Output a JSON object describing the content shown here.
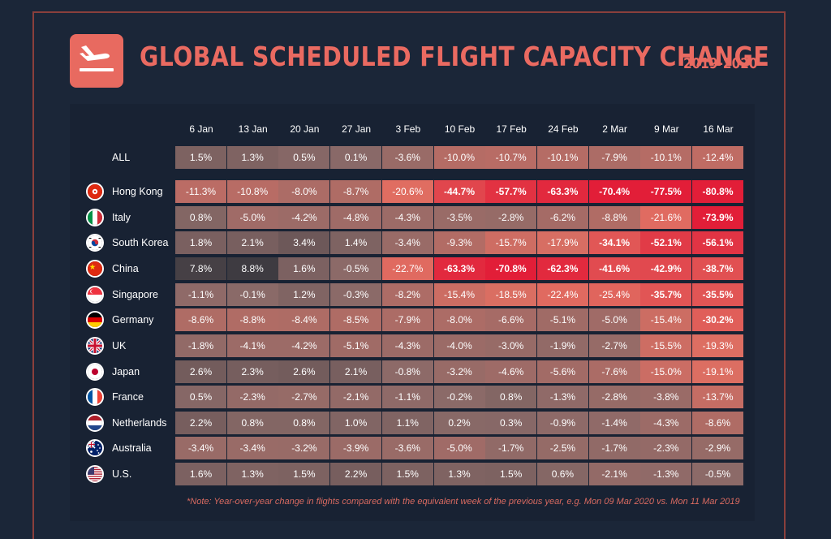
{
  "header": {
    "title": "GLOBAL SCHEDULED FLIGHT CAPACITY CHANGE",
    "subtitle": "2019-2020"
  },
  "footer": {
    "note": "*Note: Year-over-year change in flights compared with the equivalent week of the previous year, e.g. Mon 09 Mar 2020 vs. Mon 11 Mar 2019"
  },
  "chart_data": {
    "type": "heatmap",
    "title": "GLOBAL SCHEDULED FLIGHT CAPACITY CHANGE",
    "subtitle": "2019-2020",
    "columns": [
      "6 Jan",
      "13 Jan",
      "20 Jan",
      "27 Jan",
      "3 Feb",
      "10 Feb",
      "17 Feb",
      "24 Feb",
      "2 Mar",
      "9 Mar",
      "16 Mar"
    ],
    "rows": [
      {
        "name": "ALL",
        "flag": "",
        "values": [
          1.5,
          1.3,
          0.5,
          0.1,
          -3.6,
          -10.0,
          -10.7,
          -10.1,
          -7.9,
          -10.1,
          -12.4
        ],
        "labels": [
          "1.5%",
          "1.3%",
          "0.5%",
          "0.1%",
          "-3.6%",
          "-10.0%",
          "-10.7%",
          "-10.1%",
          "-7.9%",
          "-10.1%",
          "-12.4%"
        ]
      },
      {
        "name": "Hong Kong",
        "flag": "hong-kong",
        "values": [
          -11.3,
          -10.8,
          -8.0,
          -8.7,
          -20.6,
          -44.7,
          -57.7,
          -63.3,
          -70.4,
          -77.5,
          -80.8
        ],
        "labels": [
          "-11.3%",
          "-10.8%",
          "-8.0%",
          "-8.7%",
          "-20.6%",
          "-44.7%",
          "-57.7%",
          "-63.3%",
          "-70.4%",
          "-77.5%",
          "-80.8%"
        ]
      },
      {
        "name": "Italy",
        "flag": "italy",
        "values": [
          0.8,
          -5.0,
          -4.2,
          -4.8,
          -4.3,
          -3.5,
          -2.8,
          -6.2,
          -8.8,
          -21.6,
          -73.9
        ],
        "labels": [
          "0.8%",
          "-5.0%",
          "-4.2%",
          "-4.8%",
          "-4.3%",
          "-3.5%",
          "-2.8%",
          "-6.2%",
          "-8.8%",
          "-21.6%",
          "-73.9%"
        ]
      },
      {
        "name": "South Korea",
        "flag": "south-korea",
        "values": [
          1.8,
          2.1,
          3.4,
          1.4,
          -3.4,
          -9.3,
          -15.7,
          -17.9,
          -34.1,
          -52.1,
          -56.1
        ],
        "labels": [
          "1.8%",
          "2.1%",
          "3.4%",
          "1.4%",
          "-3.4%",
          "-9.3%",
          "-15.7%",
          "-17.9%",
          "-34.1%",
          "-52.1%",
          "-56.1%"
        ]
      },
      {
        "name": "China",
        "flag": "china",
        "values": [
          7.8,
          8.8,
          1.6,
          -0.5,
          -22.7,
          -63.3,
          -70.8,
          -62.3,
          -41.6,
          -42.9,
          -38.7
        ],
        "labels": [
          "7.8%",
          "8.8%",
          "1.6%",
          "-0.5%",
          "-22.7%",
          "-63.3%",
          "-70.8%",
          "-62.3%",
          "-41.6%",
          "-42.9%",
          "-38.7%"
        ]
      },
      {
        "name": "Singapore",
        "flag": "singapore",
        "values": [
          -1.1,
          -0.1,
          1.2,
          -0.3,
          -8.2,
          -15.4,
          -18.5,
          -22.4,
          -25.4,
          -35.7,
          -35.5
        ],
        "labels": [
          "-1.1%",
          "-0.1%",
          "1.2%",
          "-0.3%",
          "-8.2%",
          "-15.4%",
          "-18.5%",
          "-22.4%",
          "-25.4%",
          "-35.7%",
          "-35.5%"
        ]
      },
      {
        "name": "Germany",
        "flag": "germany",
        "values": [
          -8.6,
          -8.8,
          -8.4,
          -8.5,
          -7.9,
          -8.0,
          -6.6,
          -5.1,
          -5.0,
          -15.4,
          -30.2
        ],
        "labels": [
          "-8.6%",
          "-8.8%",
          "-8.4%",
          "-8.5%",
          "-7.9%",
          "-8.0%",
          "-6.6%",
          "-5.1%",
          "-5.0%",
          "-15.4%",
          "-30.2%"
        ]
      },
      {
        "name": "UK",
        "flag": "uk",
        "values": [
          -1.8,
          -4.1,
          -4.2,
          -5.1,
          -4.3,
          -4.0,
          -3.0,
          -1.9,
          -2.7,
          -15.5,
          -19.3
        ],
        "labels": [
          "-1.8%",
          "-4.1%",
          "-4.2%",
          "-5.1%",
          "-4.3%",
          "-4.0%",
          "-3.0%",
          "-1.9%",
          "-2.7%",
          "-15.5%",
          "-19.3%"
        ]
      },
      {
        "name": "Japan",
        "flag": "japan",
        "values": [
          2.6,
          2.3,
          2.6,
          2.1,
          -0.8,
          -3.2,
          -4.6,
          -5.6,
          -7.6,
          -15.0,
          -19.1
        ],
        "labels": [
          "2.6%",
          "2.3%",
          "2.6%",
          "2.1%",
          "-0.8%",
          "-3.2%",
          "-4.6%",
          "-5.6%",
          "-7.6%",
          "-15.0%",
          "-19.1%"
        ]
      },
      {
        "name": "France",
        "flag": "france",
        "values": [
          0.5,
          -2.3,
          -2.7,
          -2.1,
          -1.1,
          -0.2,
          0.8,
          -1.3,
          -2.8,
          -3.8,
          -13.7
        ],
        "labels": [
          "0.5%",
          "-2.3%",
          "-2.7%",
          "-2.1%",
          "-1.1%",
          "-0.2%",
          "0.8%",
          "-1.3%",
          "-2.8%",
          "-3.8%",
          "-13.7%"
        ]
      },
      {
        "name": "Netherlands",
        "flag": "netherlands",
        "values": [
          2.2,
          0.8,
          0.8,
          1.0,
          1.1,
          0.2,
          0.3,
          -0.9,
          -1.4,
          -4.3,
          -8.6
        ],
        "labels": [
          "2.2%",
          "0.8%",
          "0.8%",
          "1.0%",
          "1.1%",
          "0.2%",
          "0.3%",
          "-0.9%",
          "-1.4%",
          "-4.3%",
          "-8.6%"
        ]
      },
      {
        "name": "Australia",
        "flag": "australia",
        "values": [
          -3.4,
          -3.4,
          -3.2,
          -3.9,
          -3.6,
          -5.0,
          -1.7,
          -2.5,
          -1.7,
          -2.3,
          -2.9
        ],
        "labels": [
          "-3.4%",
          "-3.4%",
          "-3.2%",
          "-3.9%",
          "-3.6%",
          "-5.0%",
          "-1.7%",
          "-2.5%",
          "-1.7%",
          "-2.3%",
          "-2.9%"
        ]
      },
      {
        "name": "U.S.",
        "flag": "us",
        "values": [
          1.6,
          1.3,
          1.5,
          2.2,
          1.5,
          1.3,
          1.5,
          0.6,
          -2.1,
          -1.3,
          -0.5
        ],
        "labels": [
          "1.6%",
          "1.3%",
          "1.5%",
          "2.2%",
          "1.5%",
          "1.3%",
          "1.5%",
          "0.6%",
          "-2.1%",
          "-1.3%",
          "-0.5%"
        ]
      }
    ]
  },
  "colors": {
    "title": "#ea6a61",
    "positive_max": "#3c3a40",
    "neutral": "#8a6a6a",
    "negative_max": "#e01e3a",
    "frame": "#8a3f3c"
  }
}
